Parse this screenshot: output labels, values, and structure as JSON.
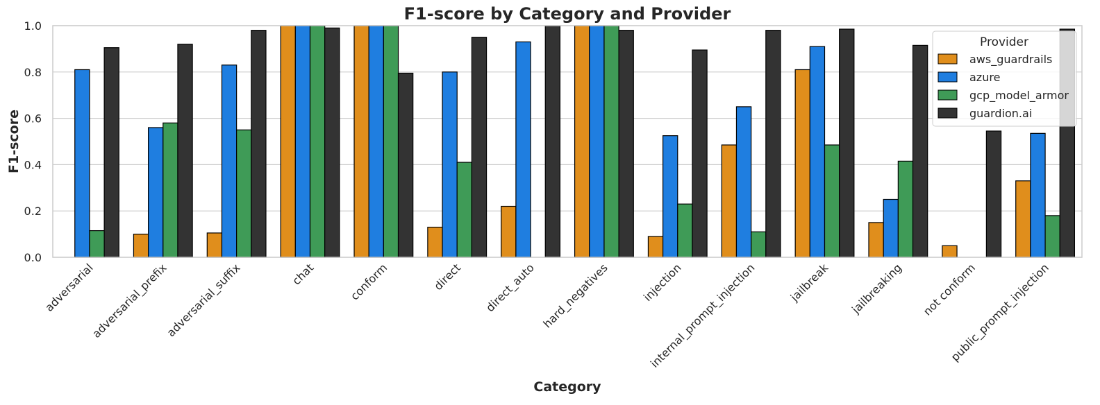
{
  "chart_data": {
    "type": "bar",
    "title": "F1-score by Category and Provider",
    "xlabel": "Category",
    "ylabel": "F1-score",
    "ylim": [
      0,
      1.0
    ],
    "yticks": [
      "0.0",
      "0.2",
      "0.4",
      "0.6",
      "0.8",
      "1.0"
    ],
    "grid": true,
    "legend": {
      "title": "Provider",
      "placement": "top-right"
    },
    "categories": [
      "adversarial",
      "adversarial_prefix",
      "adversarial_suffix",
      "chat",
      "conform",
      "direct",
      "direct_auto",
      "hard_negatives",
      "injection",
      "internal_prompt_injection",
      "jailbreak",
      "jailbreaking",
      "not conform",
      "public_prompt_injection"
    ],
    "series": [
      {
        "name": "aws_guardrails",
        "color": "#e08e1c",
        "values": [
          0.0,
          0.1,
          0.105,
          1.0,
          1.0,
          0.13,
          0.22,
          1.0,
          0.09,
          0.485,
          0.81,
          0.15,
          0.05,
          0.33
        ]
      },
      {
        "name": "azure",
        "color": "#1f7ee0",
        "values": [
          0.81,
          0.56,
          0.83,
          1.0,
          1.0,
          0.8,
          0.93,
          1.0,
          0.525,
          0.65,
          0.91,
          0.25,
          0.0,
          0.535
        ]
      },
      {
        "name": "gcp_model_armor",
        "color": "#3f9b57",
        "values": [
          0.115,
          0.58,
          0.55,
          1.0,
          1.0,
          0.41,
          0.0,
          1.0,
          0.23,
          0.11,
          0.485,
          0.415,
          0.0,
          0.18
        ]
      },
      {
        "name": "guardion.ai",
        "color": "#333333",
        "values": [
          0.905,
          0.92,
          0.98,
          0.99,
          0.795,
          0.95,
          1.0,
          0.98,
          0.895,
          0.98,
          0.985,
          0.915,
          0.545,
          0.985
        ]
      }
    ]
  }
}
